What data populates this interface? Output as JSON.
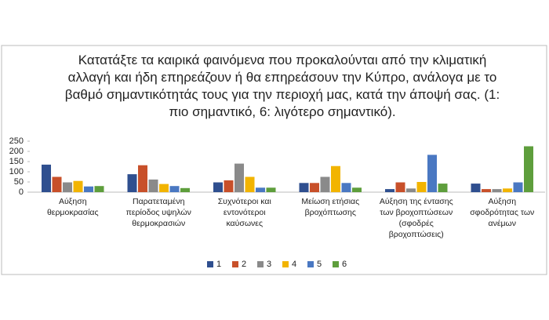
{
  "chart_data": {
    "type": "bar",
    "title": "Κατατάξτε τα καιρικά φαινόμενα που προκαλούνται από την κλιματική αλλαγή και ήδη επηρεάζουν ή θα επηρεάσουν την Κύπρο, ανάλογα με το βαθμό σημαντικότητάς τους για την περιοχή μας, κατά την άποψή σας. (1: πιο σημαντικό, 6: λιγότερο σημαντικό).",
    "categories": [
      "Αύξηση θερμοκρασίας",
      "Παρατεταμένη περίοδος υψηλών θερμοκρασιών",
      "Συχνότεροι και εντονότεροι καύσωνες",
      "Μείωση ετήσιας βροχόπτωσης",
      "Αύξηση της έντασης των βροχοπτώσεων (σφοδρές βροχοπτώσεις)",
      "Αύξηση σφοδρότητας των ανέμων"
    ],
    "series": [
      {
        "name": "1",
        "color": "#2f4f8f",
        "values": [
          135,
          88,
          48,
          45,
          15,
          42
        ]
      },
      {
        "name": "2",
        "color": "#c8502a",
        "values": [
          75,
          132,
          58,
          45,
          48,
          15
        ]
      },
      {
        "name": "3",
        "color": "#8a8a8a",
        "values": [
          48,
          62,
          140,
          75,
          18,
          15
        ]
      },
      {
        "name": "4",
        "color": "#f2b400",
        "values": [
          55,
          40,
          75,
          128,
          50,
          18
        ]
      },
      {
        "name": "5",
        "color": "#4a78c2",
        "values": [
          28,
          30,
          22,
          45,
          183,
          48
        ]
      },
      {
        "name": "6",
        "color": "#5e9e3c",
        "values": [
          30,
          20,
          22,
          22,
          42,
          225
        ]
      }
    ],
    "ylim": [
      0,
      250
    ],
    "yticks": [
      0,
      50,
      100,
      150,
      200,
      250
    ],
    "grid": false,
    "legend": "bottom"
  }
}
